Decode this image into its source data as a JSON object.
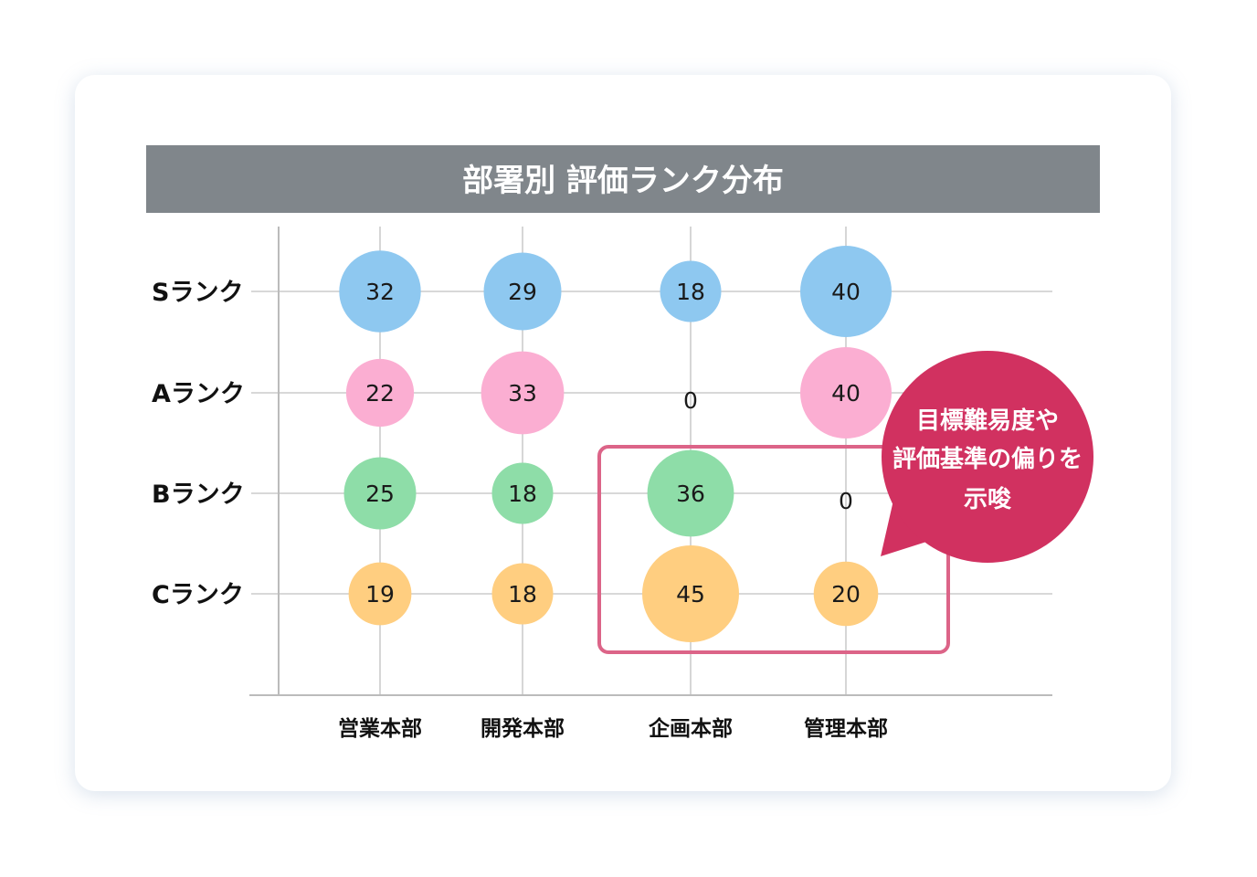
{
  "chart_data": {
    "type": "bubble-matrix",
    "title": "部署別 評価ランク分布",
    "rows": [
      "Sランク",
      "Aランク",
      "Bランク",
      "Cランク"
    ],
    "columns": [
      "営業本部",
      "開発本部",
      "企画本部",
      "管理本部"
    ],
    "values": [
      [
        32,
        29,
        18,
        40
      ],
      [
        22,
        33,
        0,
        40
      ],
      [
        25,
        18,
        36,
        0
      ],
      [
        19,
        18,
        45,
        20
      ]
    ],
    "row_colors": [
      "#8EC8F0",
      "#FBAED2",
      "#8EDDA8",
      "#FFCE80"
    ],
    "highlight": {
      "color": "#DC6488",
      "callout_lines": [
        "目標難易度や",
        "評価基準の偏りを",
        "示唆"
      ],
      "callout_color": "#D13160"
    },
    "grid": true
  }
}
